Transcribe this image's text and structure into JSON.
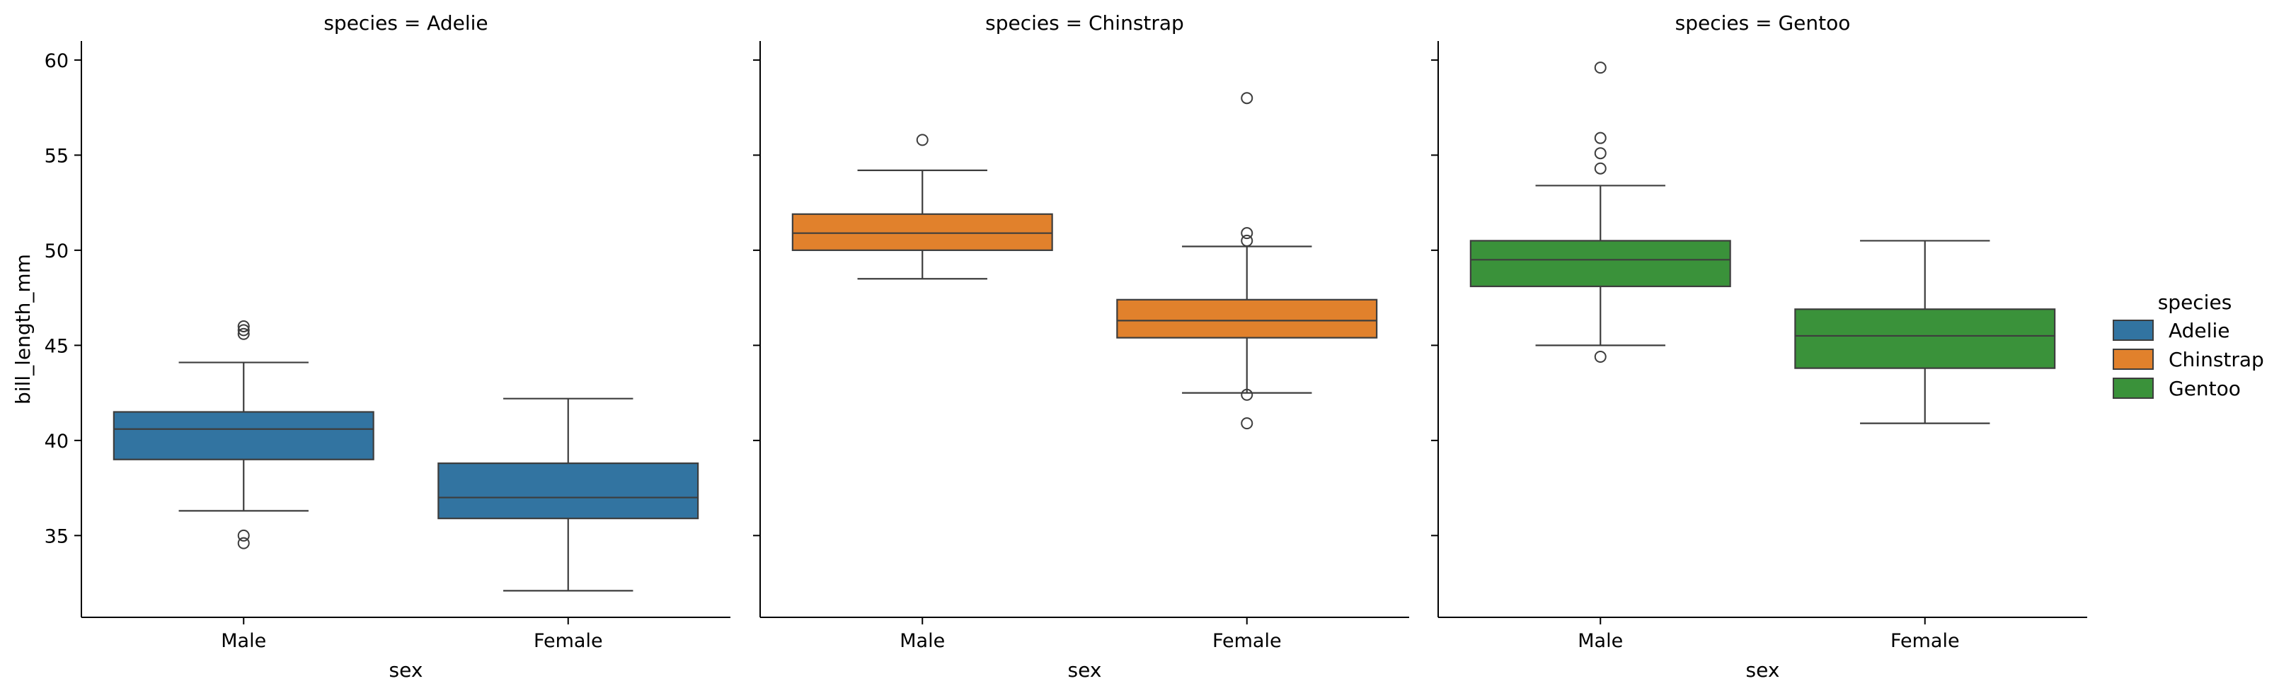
{
  "chart_data": {
    "type": "box",
    "ylabel": "bill_length_mm",
    "xlabel": "sex",
    "categories": [
      "Male",
      "Female"
    ],
    "ylim": [
      30.7,
      61.0
    ],
    "yticks": [
      35,
      40,
      45,
      50,
      55,
      60
    ],
    "legend": {
      "title": "species",
      "position": "right",
      "items": [
        {
          "label": "Adelie",
          "color": "#3274a1"
        },
        {
          "label": "Chinstrap",
          "color": "#e1812c"
        },
        {
          "label": "Gentoo",
          "color": "#3a923a"
        }
      ]
    },
    "facets": [
      {
        "title": "species = Adelie",
        "color": "#3274a1",
        "boxes": [
          {
            "category": "Male",
            "whisker_low": 36.3,
            "q1": 39.0,
            "median": 40.6,
            "q3": 41.5,
            "whisker_high": 44.1,
            "outliers": [
              34.6,
              35.0,
              45.6,
              45.8,
              46.0
            ]
          },
          {
            "category": "Female",
            "whisker_low": 32.1,
            "q1": 35.9,
            "median": 37.0,
            "q3": 38.8,
            "whisker_high": 42.2,
            "outliers": []
          }
        ]
      },
      {
        "title": "species = Chinstrap",
        "color": "#e1812c",
        "boxes": [
          {
            "category": "Male",
            "whisker_low": 48.5,
            "q1": 50.0,
            "median": 50.9,
            "q3": 51.9,
            "whisker_high": 54.2,
            "outliers": [
              55.8
            ]
          },
          {
            "category": "Female",
            "whisker_low": 42.5,
            "q1": 45.4,
            "median": 46.3,
            "q3": 47.4,
            "whisker_high": 50.2,
            "outliers": [
              40.9,
              42.4,
              50.5,
              50.9,
              58.0
            ]
          }
        ]
      },
      {
        "title": "species = Gentoo",
        "color": "#3a923a",
        "boxes": [
          {
            "category": "Male",
            "whisker_low": 45.0,
            "q1": 48.1,
            "median": 49.5,
            "q3": 50.5,
            "whisker_high": 53.4,
            "outliers": [
              44.4,
              54.3,
              55.1,
              55.9,
              59.6
            ]
          },
          {
            "category": "Female",
            "whisker_low": 40.9,
            "q1": 43.8,
            "median": 45.5,
            "q3": 46.9,
            "whisker_high": 50.5,
            "outliers": []
          }
        ]
      }
    ]
  }
}
